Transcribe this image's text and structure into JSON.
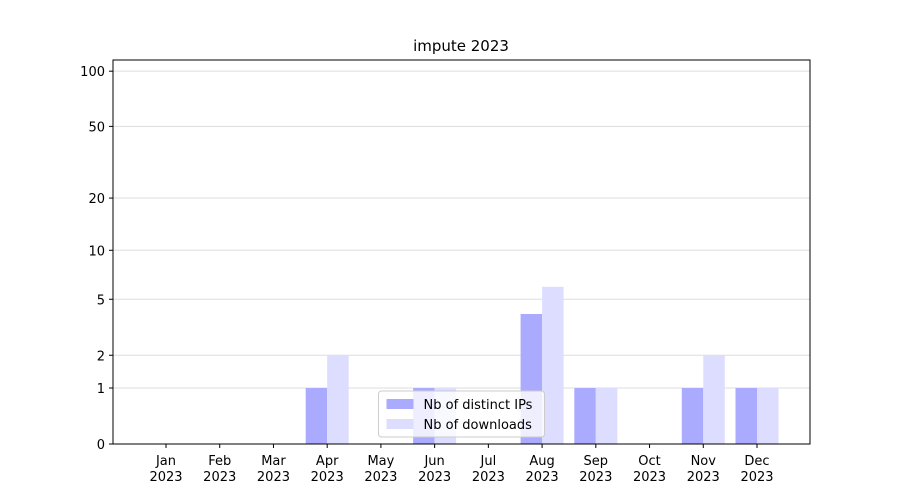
{
  "chart_data": {
    "type": "bar",
    "title": "impute 2023",
    "categories": [
      "Jan\n2023",
      "Feb\n2023",
      "Mar\n2023",
      "Apr\n2023",
      "May\n2023",
      "Jun\n2023",
      "Jul\n2023",
      "Aug\n2023",
      "Sep\n2023",
      "Oct\n2023",
      "Nov\n2023",
      "Dec\n2023"
    ],
    "series": [
      {
        "name": "Nb of distinct IPs",
        "color": "#aaaaff",
        "values": [
          0,
          0,
          0,
          1,
          0,
          1,
          0,
          4,
          1,
          0,
          1,
          1
        ]
      },
      {
        "name": "Nb of downloads",
        "color": "#ddddff",
        "values": [
          0,
          0,
          0,
          2,
          0,
          1,
          0,
          6,
          1,
          0,
          2,
          1
        ]
      }
    ],
    "yscale": "log1p",
    "ylim": [
      0,
      115
    ],
    "yticks": [
      0,
      1,
      2,
      5,
      10,
      20,
      50,
      100
    ],
    "grid": true,
    "legend": "lower center"
  }
}
